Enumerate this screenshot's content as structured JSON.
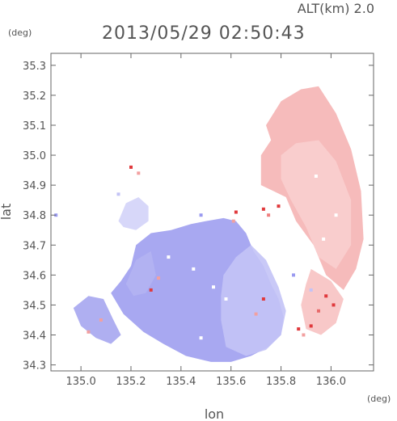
{
  "header": {
    "altitude_label": "ALT(km) 2.0",
    "timestamp": "2013/05/29 02:50:43"
  },
  "colors": {
    "approaching": "#9a9af0",
    "receding": "#f3a5a5",
    "strong_receding": "#e0393c",
    "axis": "#666666"
  },
  "chart_data": {
    "type": "heatmap",
    "title": "2013/05/29 02:50:43",
    "subtitle": "ALT(km) 2.0",
    "xlabel": "lon",
    "ylabel": "lat",
    "x_unit": "(deg)",
    "y_unit": "(deg)",
    "xlim": [
      134.88,
      136.17
    ],
    "ylim": [
      34.28,
      35.34
    ],
    "x_ticks": [
      {
        "value": 135.0,
        "label": "135.0"
      },
      {
        "value": 135.2,
        "label": "135.2"
      },
      {
        "value": 135.4,
        "label": "135.4"
      },
      {
        "value": 135.6,
        "label": "135.6"
      },
      {
        "value": 135.8,
        "label": "135.8"
      },
      {
        "value": 136.0,
        "label": "136.0"
      }
    ],
    "y_ticks": [
      {
        "value": 34.3,
        "label": "34.3"
      },
      {
        "value": 34.4,
        "label": "34.4"
      },
      {
        "value": 34.5,
        "label": "34.5"
      },
      {
        "value": 34.6,
        "label": "34.6"
      },
      {
        "value": 34.7,
        "label": "34.7"
      },
      {
        "value": 34.8,
        "label": "34.8"
      },
      {
        "value": 34.9,
        "label": "34.9"
      },
      {
        "value": 35.0,
        "label": "35.0"
      },
      {
        "value": 35.1,
        "label": "35.1"
      },
      {
        "value": 35.2,
        "label": "35.2"
      },
      {
        "value": 35.3,
        "label": "35.3"
      }
    ],
    "regions": [
      {
        "id": "receding-north-east",
        "color": "#f5b4b4",
        "opacity": 0.9,
        "points": [
          [
            135.74,
            35.1
          ],
          [
            135.8,
            35.18
          ],
          [
            135.88,
            35.22
          ],
          [
            135.95,
            35.23
          ],
          [
            136.02,
            35.14
          ],
          [
            136.08,
            35.02
          ],
          [
            136.12,
            34.88
          ],
          [
            136.13,
            34.72
          ],
          [
            136.1,
            34.62
          ],
          [
            136.05,
            34.55
          ],
          [
            135.98,
            34.6
          ],
          [
            135.93,
            34.7
          ],
          [
            135.86,
            34.78
          ],
          [
            135.82,
            34.86
          ],
          [
            135.77,
            34.88
          ],
          [
            135.72,
            34.9
          ],
          [
            135.72,
            35.0
          ],
          [
            135.76,
            35.05
          ]
        ]
      },
      {
        "id": "receding-north-inner",
        "color": "#f9cfcf",
        "opacity": 0.9,
        "points": [
          [
            135.8,
            35.0
          ],
          [
            135.86,
            35.04
          ],
          [
            135.95,
            35.05
          ],
          [
            136.02,
            34.98
          ],
          [
            136.08,
            34.85
          ],
          [
            136.08,
            34.7
          ],
          [
            136.02,
            34.62
          ],
          [
            135.95,
            34.66
          ],
          [
            135.9,
            34.76
          ],
          [
            135.84,
            34.85
          ],
          [
            135.8,
            34.92
          ]
        ]
      },
      {
        "id": "receding-south-east",
        "color": "#f7c2c2",
        "opacity": 0.9,
        "points": [
          [
            135.92,
            34.62
          ],
          [
            136.0,
            34.58
          ],
          [
            136.05,
            34.52
          ],
          [
            136.02,
            34.44
          ],
          [
            135.96,
            34.4
          ],
          [
            135.9,
            34.42
          ],
          [
            135.88,
            34.5
          ],
          [
            135.9,
            34.57
          ]
        ]
      },
      {
        "id": "approaching-main",
        "color": "#9f9ff0",
        "opacity": 0.9,
        "points": [
          [
            135.12,
            34.54
          ],
          [
            135.17,
            34.47
          ],
          [
            135.25,
            34.41
          ],
          [
            135.33,
            34.37
          ],
          [
            135.42,
            34.33
          ],
          [
            135.52,
            34.31
          ],
          [
            135.6,
            34.31
          ],
          [
            135.68,
            34.33
          ],
          [
            135.75,
            34.36
          ],
          [
            135.8,
            34.4
          ],
          [
            135.81,
            34.46
          ],
          [
            135.79,
            34.52
          ],
          [
            135.76,
            34.57
          ],
          [
            135.73,
            34.63
          ],
          [
            135.69,
            34.68
          ],
          [
            135.66,
            34.74
          ],
          [
            135.62,
            34.78
          ],
          [
            135.57,
            34.79
          ],
          [
            135.5,
            34.78
          ],
          [
            135.44,
            34.77
          ],
          [
            135.36,
            34.75
          ],
          [
            135.28,
            34.74
          ],
          [
            135.22,
            34.7
          ],
          [
            135.2,
            34.63
          ],
          [
            135.16,
            34.58
          ]
        ]
      },
      {
        "id": "approaching-east-light",
        "color": "#c3c3f6",
        "opacity": 0.9,
        "points": [
          [
            135.57,
            34.6
          ],
          [
            135.62,
            34.66
          ],
          [
            135.68,
            34.7
          ],
          [
            135.74,
            34.65
          ],
          [
            135.79,
            34.56
          ],
          [
            135.82,
            34.48
          ],
          [
            135.8,
            34.4
          ],
          [
            135.74,
            34.35
          ],
          [
            135.66,
            34.33
          ],
          [
            135.58,
            34.36
          ],
          [
            135.56,
            34.45
          ],
          [
            135.56,
            34.53
          ]
        ]
      },
      {
        "id": "approaching-south-west",
        "color": "#a6a6f0",
        "opacity": 0.9,
        "points": [
          [
            134.97,
            34.49
          ],
          [
            135.03,
            34.53
          ],
          [
            135.09,
            34.52
          ],
          [
            135.13,
            34.45
          ],
          [
            135.16,
            34.4
          ],
          [
            135.12,
            34.37
          ],
          [
            135.06,
            34.39
          ],
          [
            135.0,
            34.43
          ]
        ]
      },
      {
        "id": "approaching-north-patch",
        "color": "#d0d0f8",
        "opacity": 0.85,
        "points": [
          [
            135.15,
            34.78
          ],
          [
            135.18,
            34.84
          ],
          [
            135.23,
            34.86
          ],
          [
            135.27,
            34.83
          ],
          [
            135.27,
            34.78
          ],
          [
            135.22,
            34.75
          ],
          [
            135.17,
            34.76
          ]
        ]
      },
      {
        "id": "approaching-west-island",
        "color": "#b2b2f2",
        "opacity": 0.9,
        "points": [
          [
            135.18,
            34.57
          ],
          [
            135.22,
            34.65
          ],
          [
            135.28,
            34.68
          ],
          [
            135.3,
            34.6
          ],
          [
            135.26,
            34.54
          ],
          [
            135.21,
            34.53
          ]
        ]
      }
    ],
    "speckles": [
      {
        "lon": 135.73,
        "lat": 34.82,
        "color": "#e0393c"
      },
      {
        "lon": 135.75,
        "lat": 34.8,
        "color": "#ef7f7f"
      },
      {
        "lon": 135.79,
        "lat": 34.83,
        "color": "#e0393c"
      },
      {
        "lon": 135.62,
        "lat": 34.81,
        "color": "#e0393c"
      },
      {
        "lon": 135.61,
        "lat": 34.78,
        "color": "#f2a0a0"
      },
      {
        "lon": 135.28,
        "lat": 34.55,
        "color": "#e0393c"
      },
      {
        "lon": 135.31,
        "lat": 34.59,
        "color": "#f2a0a0"
      },
      {
        "lon": 135.2,
        "lat": 34.96,
        "color": "#e0393c"
      },
      {
        "lon": 135.23,
        "lat": 34.94,
        "color": "#f2a0a0"
      },
      {
        "lon": 135.98,
        "lat": 34.53,
        "color": "#e0393c"
      },
      {
        "lon": 136.01,
        "lat": 34.5,
        "color": "#e0393c"
      },
      {
        "lon": 135.95,
        "lat": 34.48,
        "color": "#e86a6a"
      },
      {
        "lon": 135.92,
        "lat": 34.43,
        "color": "#e0393c"
      },
      {
        "lon": 135.87,
        "lat": 34.42,
        "color": "#e0393c"
      },
      {
        "lon": 135.89,
        "lat": 34.4,
        "color": "#f2a0a0"
      },
      {
        "lon": 135.7,
        "lat": 34.47,
        "color": "#f2a0a0"
      },
      {
        "lon": 135.73,
        "lat": 34.52,
        "color": "#e0393c"
      },
      {
        "lon": 135.03,
        "lat": 34.41,
        "color": "#f2a0a0"
      },
      {
        "lon": 135.08,
        "lat": 34.45,
        "color": "#f2a0a0"
      },
      {
        "lon": 135.53,
        "lat": 34.56,
        "color": "#ffffff"
      },
      {
        "lon": 135.58,
        "lat": 34.52,
        "color": "#ffffff"
      },
      {
        "lon": 135.48,
        "lat": 34.39,
        "color": "#ffffff"
      },
      {
        "lon": 135.35,
        "lat": 34.66,
        "color": "#ffffff"
      },
      {
        "lon": 135.45,
        "lat": 34.62,
        "color": "#ffffff"
      },
      {
        "lon": 136.02,
        "lat": 34.8,
        "color": "#ffffff"
      },
      {
        "lon": 135.94,
        "lat": 34.93,
        "color": "#ffffff"
      },
      {
        "lon": 135.97,
        "lat": 34.72,
        "color": "#ffffff"
      },
      {
        "lon": 134.9,
        "lat": 34.8,
        "color": "#9a9af0"
      },
      {
        "lon": 135.15,
        "lat": 34.87,
        "color": "#c3c3f6"
      },
      {
        "lon": 135.48,
        "lat": 34.8,
        "color": "#9a9af0"
      },
      {
        "lon": 135.85,
        "lat": 34.6,
        "color": "#9a9af0"
      },
      {
        "lon": 135.92,
        "lat": 34.55,
        "color": "#c3c3f6"
      }
    ]
  }
}
